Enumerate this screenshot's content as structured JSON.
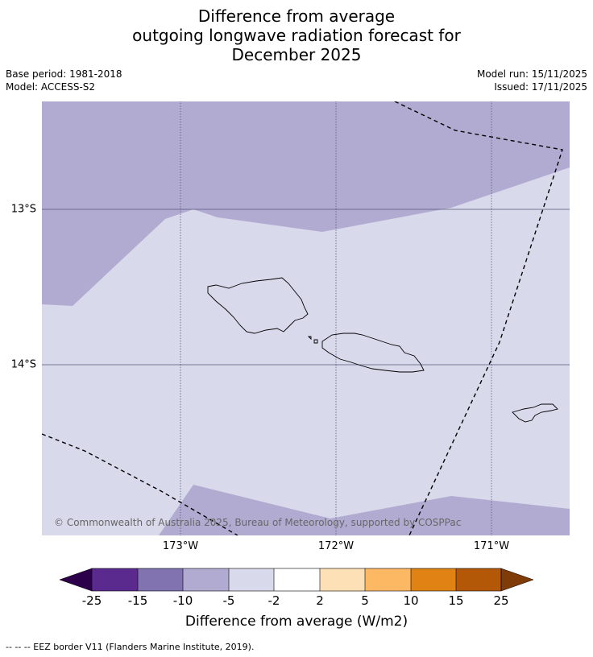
{
  "title": {
    "line1": "Difference from average",
    "line2": "outgoing longwave radiation forecast for",
    "line3": "December 2025"
  },
  "meta": {
    "base_period": "Base period: 1981-2018",
    "model": "Model: ACCESS-S2",
    "model_run": "Model run: 15/11/2025",
    "issued": "Issued: 17/11/2025"
  },
  "map": {
    "lat_labels": [
      "13°S",
      "14°S"
    ],
    "lon_labels": [
      "173°W",
      "172°W",
      "171°W"
    ],
    "copyright": "© Commonwealth of Australia 2025, Bureau of Meteorology, supported by COSPPac",
    "colors": {
      "band_-10_-5": "#b1abd2",
      "band_-5_-2": "#d8d9eb",
      "coast": "#000000"
    }
  },
  "colorbar": {
    "ticks": [
      "-25",
      "-15",
      "-10",
      "-5",
      "-2",
      "2",
      "5",
      "10",
      "15",
      "25"
    ],
    "colors": [
      "#2d004b",
      "#5b2a8e",
      "#8173b0",
      "#b1abd2",
      "#d8d9eb",
      "#ffffff",
      "#fee0b6",
      "#fdb863",
      "#e08214",
      "#b35806",
      "#7f3b08"
    ],
    "label": "Difference from average (W/m2)"
  },
  "footer": "--  --  -- EEZ border V11 (Flanders Marine Institute, 2019)."
}
